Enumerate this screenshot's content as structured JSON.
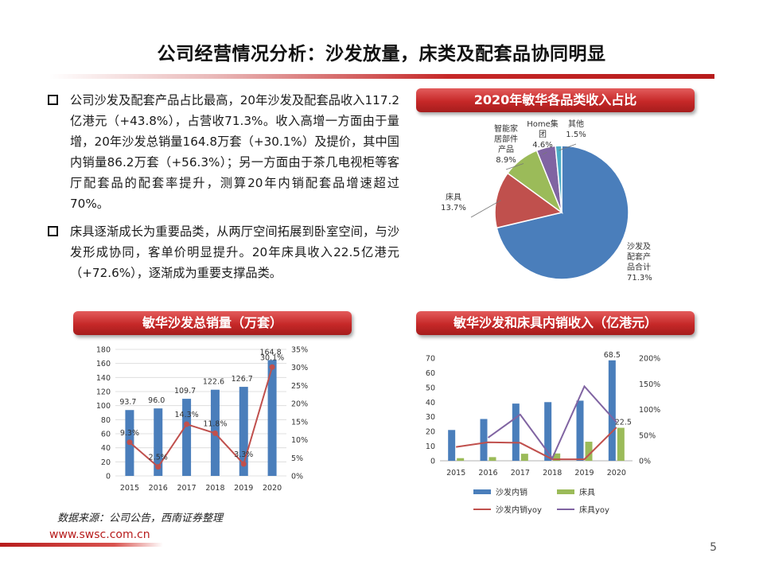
{
  "title": "公司经营情况分析：沙发放量，床类及配套品协同明显",
  "bullets": [
    "公司沙发及配套产品占比最高，20年沙发及配套品收入117.2亿港元（+43.8%），占营收71.3%。收入高增一方面由于量增，20年沙发总销量164.8万套（+30.1%）及提价，其中国内销量86.2万套（+56.3%）；另一方面由于茶几电视柜等客厅配套品的配套率提升，测算20年内销配套品增速超过70%。",
    "床具逐渐成长为重要品类，从两厅空间拓展到卧室空间，与沙发形成协同，客单价明显提升。20年床具收入22.5亿港元（+72.6%），逐渐成为重要支撑品类。"
  ],
  "pie_title": "2020年敏华各品类收入占比",
  "bar1_title": "敏华沙发总销量（万套）",
  "bar2_title": "敏华沙发和床具内销收入（亿港元）",
  "source": "数据来源：公司公告，西南证券整理",
  "url": "www.swsc.com.cn",
  "page_number": "5",
  "chart_data": [
    {
      "type": "pie",
      "labels": [
        [
          "沙发及",
          "配套产",
          "品合计",
          "71.3%"
        ],
        [
          "床具",
          "13.7%"
        ],
        [
          "智能家",
          "居部件",
          "产品",
          "8.9%"
        ],
        [
          "Home集",
          "团",
          "4.6%"
        ],
        [
          "其他",
          "1.5%"
        ]
      ],
      "values": [
        71.3,
        13.7,
        8.9,
        4.6,
        1.5
      ],
      "colors": [
        "#4a7ebb",
        "#c0504d",
        "#9bbb59",
        "#8064a2",
        "#4bacc6"
      ]
    },
    {
      "type": "bar",
      "categories": [
        "2015",
        "2016",
        "2017",
        "2018",
        "2019",
        "2020"
      ],
      "series": [
        {
          "values": [
            93.7,
            96.0,
            109.7,
            122.6,
            126.7,
            164.8
          ],
          "labels": [
            "93.7",
            "96.0",
            "109.7",
            "122.6",
            "126.7",
            "164.8"
          ],
          "color": "#4a7ebb"
        },
        {
          "type": "line",
          "axis": "right",
          "values": [
            9.3,
            2.5,
            14.3,
            11.8,
            3.3,
            30.1
          ],
          "labels": [
            "9.3%",
            "2.5%",
            "14.3%",
            "11.8%",
            "3.3%",
            "30.1%"
          ],
          "color": "#c0504d"
        }
      ],
      "ylim": [
        0,
        180
      ],
      "yticks": [
        "0",
        "20",
        "40",
        "60",
        "80",
        "100",
        "120",
        "140",
        "160",
        "180"
      ],
      "y2lim": [
        0,
        35
      ],
      "y2ticks": [
        "0%",
        "5%",
        "10%",
        "15%",
        "20%",
        "25%",
        "30%",
        "35%"
      ],
      "grid": true
    },
    {
      "type": "bar",
      "categories": [
        "2015",
        "2016",
        "2017",
        "2018",
        "2019",
        "2020"
      ],
      "series": [
        {
          "name": "沙发内销",
          "values": [
            21,
            28.5,
            39,
            40,
            41,
            68.5
          ],
          "color": "#4a7ebb"
        },
        {
          "name": "床具",
          "values": [
            1.8,
            2.5,
            4.8,
            5,
            13,
            22.5
          ],
          "color": "#9bbb59"
        },
        {
          "name": "沙发内销yoy",
          "type": "line",
          "axis": "right",
          "values": [
            27,
            36,
            35,
            3,
            3,
            65
          ],
          "color": "#c0504d"
        },
        {
          "name": "床具yoy",
          "type": "line",
          "axis": "right",
          "values": [
            null,
            45,
            90,
            5,
            145,
            75
          ],
          "color": "#8064a2"
        }
      ],
      "point_labels": {
        "bar_2020_sofa": "68.5",
        "bar_2020_bed": "22.5"
      },
      "ylim": [
        0,
        70
      ],
      "yticks": [
        "0",
        "10",
        "20",
        "30",
        "40",
        "50",
        "60",
        "70"
      ],
      "y2lim": [
        0,
        200
      ],
      "y2ticks": [
        "0%",
        "50%",
        "100%",
        "150%",
        "200%"
      ],
      "legend_position": "bottom"
    }
  ]
}
